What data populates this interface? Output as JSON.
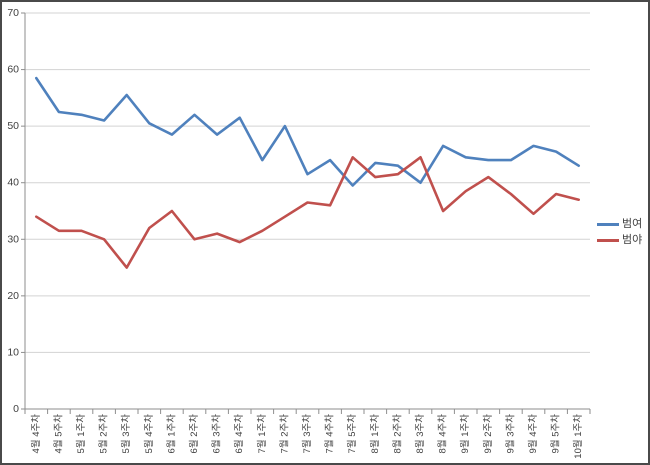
{
  "chart_data": {
    "type": "line",
    "title": "",
    "xlabel": "",
    "ylabel": "",
    "categories": [
      "4월 4주차",
      "4월 5주차",
      "5월 1주차",
      "5월 2주차",
      "5월 3주차",
      "5월 4주차",
      "6월 1주차",
      "6월 2주차",
      "6월 3주차",
      "6월 4주차",
      "7월 1주차",
      "7월 2주차",
      "7월 3주차",
      "7월 4주차",
      "7월 5주차",
      "8월 1주차",
      "8월 2주차",
      "8월 3주차",
      "8월 4주차",
      "9월 1주차",
      "9월 2주차",
      "9월 3주차",
      "9월 4주차",
      "9월 5주차",
      "10월 1주차"
    ],
    "series": [
      {
        "name": "범여",
        "color": "#4f81bd",
        "values": [
          58.5,
          52.5,
          52,
          51,
          55.5,
          50.5,
          48.5,
          52,
          48.5,
          51.5,
          44,
          50,
          41.5,
          44,
          39.5,
          43.5,
          43,
          40,
          46.5,
          44.5,
          44,
          44,
          46.5,
          45.5,
          43
        ]
      },
      {
        "name": "범야",
        "color": "#c0504d",
        "values": [
          34,
          31.5,
          31.5,
          30,
          25,
          32,
          35,
          30,
          31,
          29.5,
          31.5,
          34,
          36.5,
          36,
          44.5,
          41,
          41.5,
          44.5,
          35,
          38.5,
          41,
          38,
          34.5,
          38,
          37
        ]
      }
    ],
    "ylim": [
      0,
      70
    ],
    "ytick_step": 10,
    "ytick_labels": [
      "0",
      "10",
      "20",
      "30",
      "40",
      "50",
      "60",
      "70"
    ],
    "grid": true,
    "legend_position": "right"
  },
  "colors": {
    "background": "#ffffff",
    "frame_border": "#4a4a4a",
    "gridline": "#d3d3d3",
    "axis": "#8e8e8e",
    "tick_text": "#3f3f3f"
  }
}
